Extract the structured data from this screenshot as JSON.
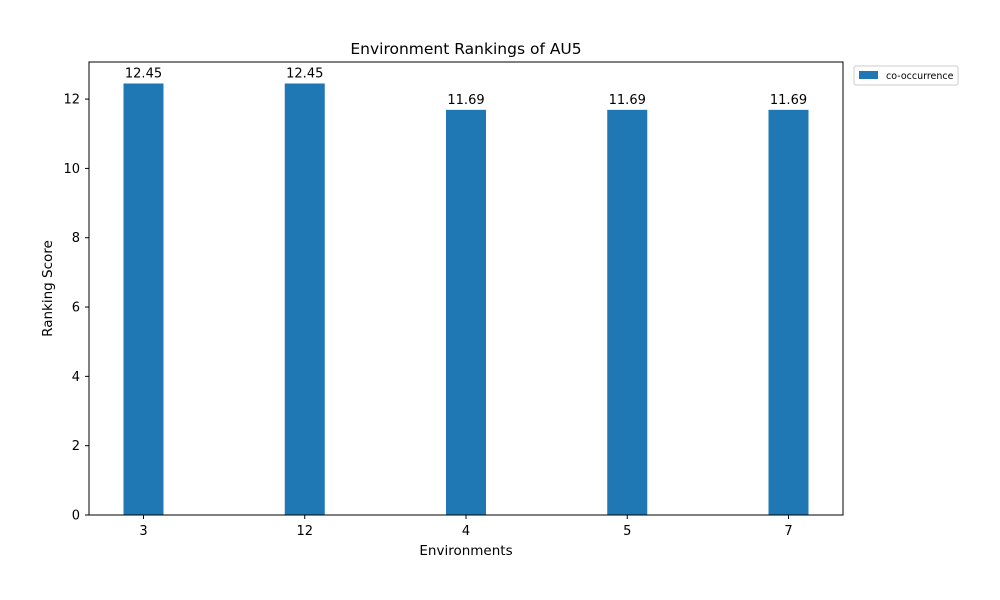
{
  "chart_data": {
    "type": "bar",
    "title": "Environment Rankings of AU5",
    "xlabel": "Environments",
    "ylabel": "Ranking Score",
    "categories": [
      "3",
      "12",
      "4",
      "5",
      "7"
    ],
    "series": [
      {
        "name": "co-occurrence",
        "values": [
          12.45,
          12.45,
          11.69,
          11.69,
          11.69
        ],
        "color": "#1f77b4"
      }
    ],
    "data_labels": [
      "12.45",
      "12.45",
      "11.69",
      "11.69",
      "11.69"
    ],
    "ylim": [
      0,
      13.07
    ],
    "yticks": [
      0,
      2,
      4,
      6,
      8,
      10,
      12
    ],
    "grid": false,
    "legend_position": "outside-top-right"
  }
}
